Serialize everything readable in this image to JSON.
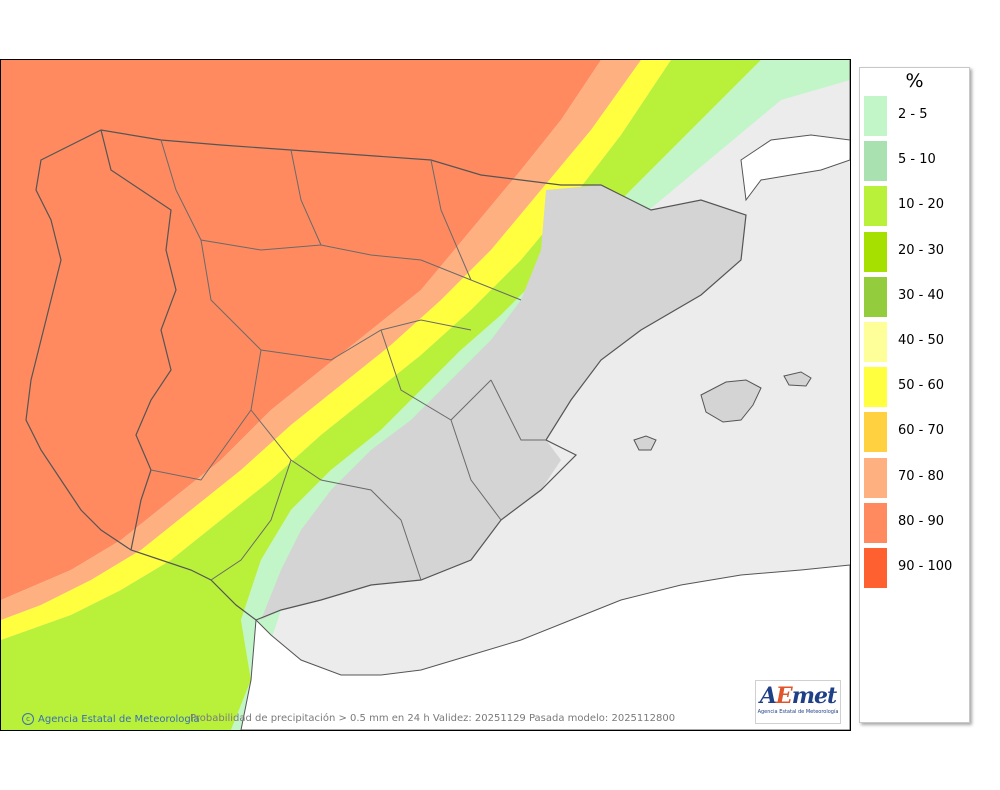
{
  "map": {
    "credit": "Agencia Estatal de Meteorología",
    "caption": "Probabilidad de precipitación > 0.5 mm en 24 h Validez: 20251129 Pasada modelo: 2025112800",
    "logo_text": "AEmet",
    "logo_sub": "Agencia Estatal de Meteorología",
    "colors": {
      "sea": "#ececec",
      "land_dry": "#d4d4d4",
      "border": "#555555"
    }
  },
  "legend": {
    "unit": "%",
    "items": [
      {
        "label": "2 - 5",
        "color": "#c2f5c8"
      },
      {
        "label": "5 - 10",
        "color": "#a9e2b0"
      },
      {
        "label": "10 - 20",
        "color": "#b8f03a"
      },
      {
        "label": "20 - 30",
        "color": "#a6e000"
      },
      {
        "label": "30 - 40",
        "color": "#93cc3c"
      },
      {
        "label": "40 - 50",
        "color": "#ffff9a"
      },
      {
        "label": "50 - 60",
        "color": "#ffff40"
      },
      {
        "label": "60 - 70",
        "color": "#ffd040"
      },
      {
        "label": "70 - 80",
        "color": "#ffb080"
      },
      {
        "label": "80 - 90",
        "color": "#ff8a60"
      },
      {
        "label": "90 - 100",
        "color": "#ff6030"
      }
    ]
  }
}
